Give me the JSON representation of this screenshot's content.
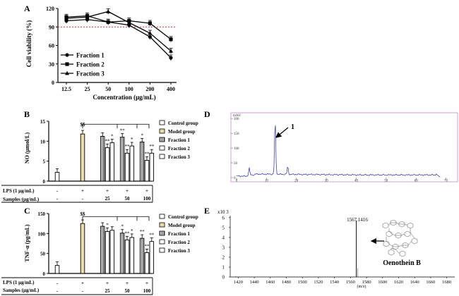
{
  "figure": {
    "panel_letters": [
      "A",
      "B",
      "C",
      "D",
      "E"
    ],
    "group_labels": [
      "Control group",
      "Model group",
      "Fraction 1",
      "Fraction 2",
      "Fraction 3"
    ],
    "treatment_table": {
      "lps_label": "LPS (1 μg/mL)",
      "samples_label": "Samples (μg/mL)",
      "lps_values": [
        "-",
        "+",
        "+",
        "+",
        "+"
      ],
      "sample_values": [
        "-",
        "-",
        "25",
        "50",
        "100"
      ]
    }
  },
  "chart_data": [
    {
      "id": "A",
      "type": "line",
      "title": "",
      "xlabel": "Concentration (μg/mL)",
      "ylabel": "Cell viability (%)",
      "categories": [
        "12.5",
        "25",
        "50",
        "100",
        "200",
        "400"
      ],
      "yticks": [
        "0",
        "30",
        "60",
        "90",
        "120"
      ],
      "ylim": [
        0,
        120
      ],
      "reference_line": 90,
      "series": [
        {
          "name": "Fraction 1",
          "marker": "circle",
          "values": [
            100,
            102,
            98,
            93,
            74,
            40
          ]
        },
        {
          "name": "Fraction 2",
          "marker": "square",
          "values": [
            106,
            108,
            98,
            100,
            96,
            70
          ]
        },
        {
          "name": "Fraction 3",
          "marker": "triangle",
          "values": [
            104,
            106,
            115,
            97,
            80,
            51
          ]
        }
      ],
      "legend": "bottom-left"
    },
    {
      "id": "B",
      "type": "bar",
      "ylabel": "NO (μmol/L)",
      "yticks": [
        "0",
        "5",
        "10",
        "15"
      ],
      "ylim": [
        0,
        15
      ],
      "groups": [
        {
          "values": [
            2.2
          ]
        },
        {
          "values": [
            11.8
          ],
          "annotation": "$$"
        },
        {
          "values": [
            11.2,
            8.4,
            9.6
          ],
          "annotations": [
            "",
            "**",
            "*"
          ]
        },
        {
          "values": [
            11.0,
            7.0,
            8.8
          ],
          "annotations": [
            "**",
            "**",
            "*"
          ]
        },
        {
          "values": [
            9.8,
            5.2,
            7.0
          ],
          "annotations": [
            "*",
            "**",
            "**"
          ]
        }
      ],
      "legend": "right"
    },
    {
      "id": "C",
      "type": "bar",
      "ylabel": "TNF-α (pg/mL)",
      "yticks": [
        "0",
        "50",
        "100",
        "150"
      ],
      "ylim": [
        0,
        150
      ],
      "groups": [
        {
          "values": [
            20
          ]
        },
        {
          "values": [
            125
          ],
          "annotation": "$$"
        },
        {
          "values": [
            118,
            105,
            108
          ],
          "annotations": [
            "",
            "*",
            ""
          ]
        },
        {
          "values": [
            101,
            84,
            90
          ],
          "annotations": [
            "*",
            "**",
            "*"
          ]
        },
        {
          "values": [
            88,
            52,
            80
          ],
          "annotations": [
            "**",
            "**",
            "**"
          ]
        }
      ],
      "legend": "right"
    },
    {
      "id": "D",
      "type": "line",
      "ylabel": "mAU",
      "xticks": [
        "0",
        "10",
        "20",
        "30",
        "40",
        "50",
        "60",
        "70"
      ],
      "yticks": [
        "0",
        "50",
        "100",
        "150",
        "200"
      ],
      "xlim": [
        0,
        72
      ],
      "ylim": [
        0,
        210
      ],
      "peak_label": "1",
      "peaks": [
        {
          "x": 4.2,
          "y": 24
        },
        {
          "x": 12.9,
          "y": 186
        },
        {
          "x": 17.1,
          "y": 26
        }
      ]
    },
    {
      "id": "E",
      "type": "bar",
      "ylabel": "x10 3",
      "xlabel": "(m/z)",
      "xticks": [
        "1420",
        "1440",
        "1460",
        "1480",
        "1500",
        "1520",
        "1540",
        "1560",
        "1580",
        "1600",
        "1620",
        "1640",
        "1660",
        "1680"
      ],
      "yticks": [
        "0",
        "1",
        "2",
        "3",
        "4",
        "5",
        "6"
      ],
      "xlim": [
        1410,
        1690
      ],
      "ylim": [
        0,
        6.2
      ],
      "peak_mz": 1567.1416,
      "peak_label": "1567.1416",
      "peak_intensity": 5.7,
      "compound_label": "Oenothein B",
      "minor_peaks": [
        {
          "x": 1417,
          "y": 0.12
        },
        {
          "x": 1569,
          "y": 0.9
        }
      ]
    }
  ]
}
